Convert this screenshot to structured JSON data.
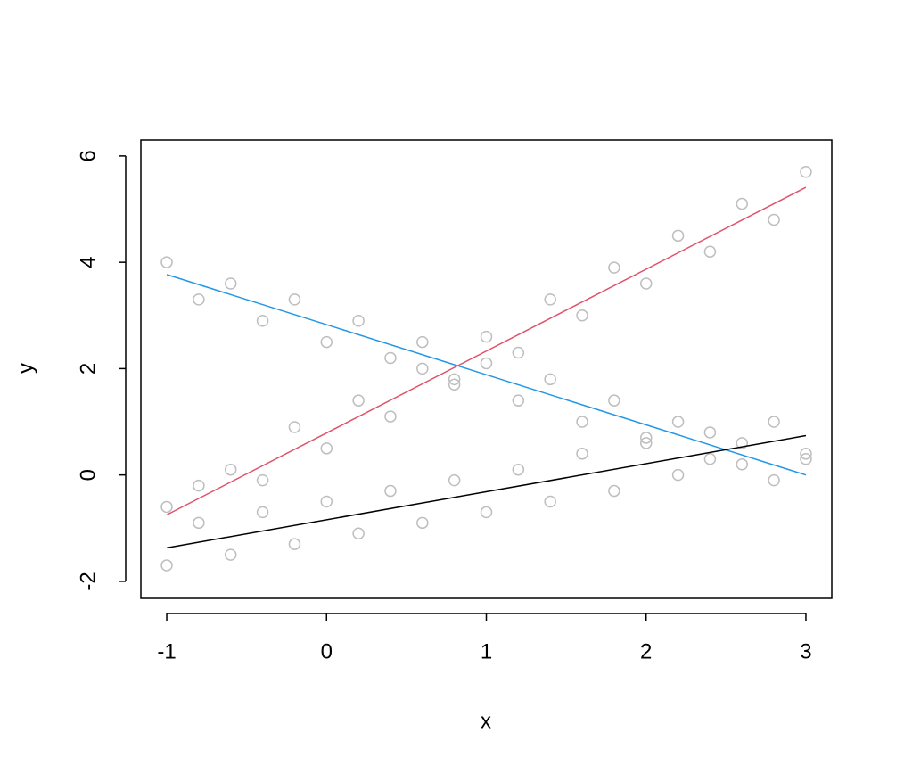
{
  "chart_data": {
    "type": "scatter",
    "xlabel": "x",
    "ylabel": "y",
    "xlim": [
      -1.162,
      3.162
    ],
    "ylim": [
      -2.32,
      6.3
    ],
    "xticks": [
      -1,
      0,
      1,
      2,
      3
    ],
    "yticks": [
      -2,
      0,
      2,
      4,
      6
    ],
    "points": {
      "color": "#bebebe",
      "x": [
        -1,
        -0.8,
        -0.6,
        -0.4,
        -0.2,
        0,
        0.2,
        0.4,
        0.6,
        0.8,
        1,
        1.2,
        1.4,
        1.6,
        1.8,
        2,
        2.2,
        2.4,
        2.6,
        2.8,
        3,
        -1,
        -0.8,
        -0.6,
        -0.4,
        -0.2,
        0,
        0.2,
        0.4,
        0.6,
        0.8,
        1,
        1.2,
        1.4,
        1.6,
        1.8,
        2,
        2.2,
        2.4,
        2.6,
        2.8,
        3,
        -1,
        -0.8,
        -0.6,
        -0.4,
        -0.2,
        0,
        0.2,
        0.4,
        0.6,
        0.8,
        1,
        1.2,
        1.4,
        1.6,
        1.8,
        2,
        2.2,
        2.4,
        2.6,
        2.8,
        3
      ],
      "values": [
        -0.6,
        -0.2,
        0.1,
        -0.1,
        0.9,
        0.5,
        1.4,
        1.1,
        2.0,
        1.7,
        2.6,
        2.3,
        3.3,
        3.0,
        3.9,
        3.6,
        4.5,
        4.2,
        5.1,
        4.8,
        5.7,
        4.0,
        3.3,
        3.6,
        2.9,
        3.3,
        2.5,
        2.9,
        2.2,
        2.5,
        1.8,
        2.1,
        1.4,
        1.8,
        1.0,
        1.4,
        0.7,
        1.0,
        0.3,
        0.6,
        -0.1,
        0.3,
        -1.7,
        -0.9,
        -1.5,
        -0.7,
        -1.3,
        -0.5,
        -1.1,
        -0.3,
        -0.9,
        -0.1,
        -0.7,
        0.1,
        -0.5,
        0.4,
        -0.3,
        0.6,
        0,
        0.8,
        0.2,
        1.0,
        0.4
      ]
    },
    "lines": [
      {
        "color": "#df536b",
        "x": [
          -1,
          3
        ],
        "values": [
          -0.75,
          5.41
        ]
      },
      {
        "color": "#2297e6",
        "x": [
          -1,
          3
        ],
        "values": [
          3.77,
          0.0
        ]
      },
      {
        "color": "#000000",
        "x": [
          -1,
          3
        ],
        "values": [
          -1.37,
          0.74
        ]
      }
    ]
  }
}
